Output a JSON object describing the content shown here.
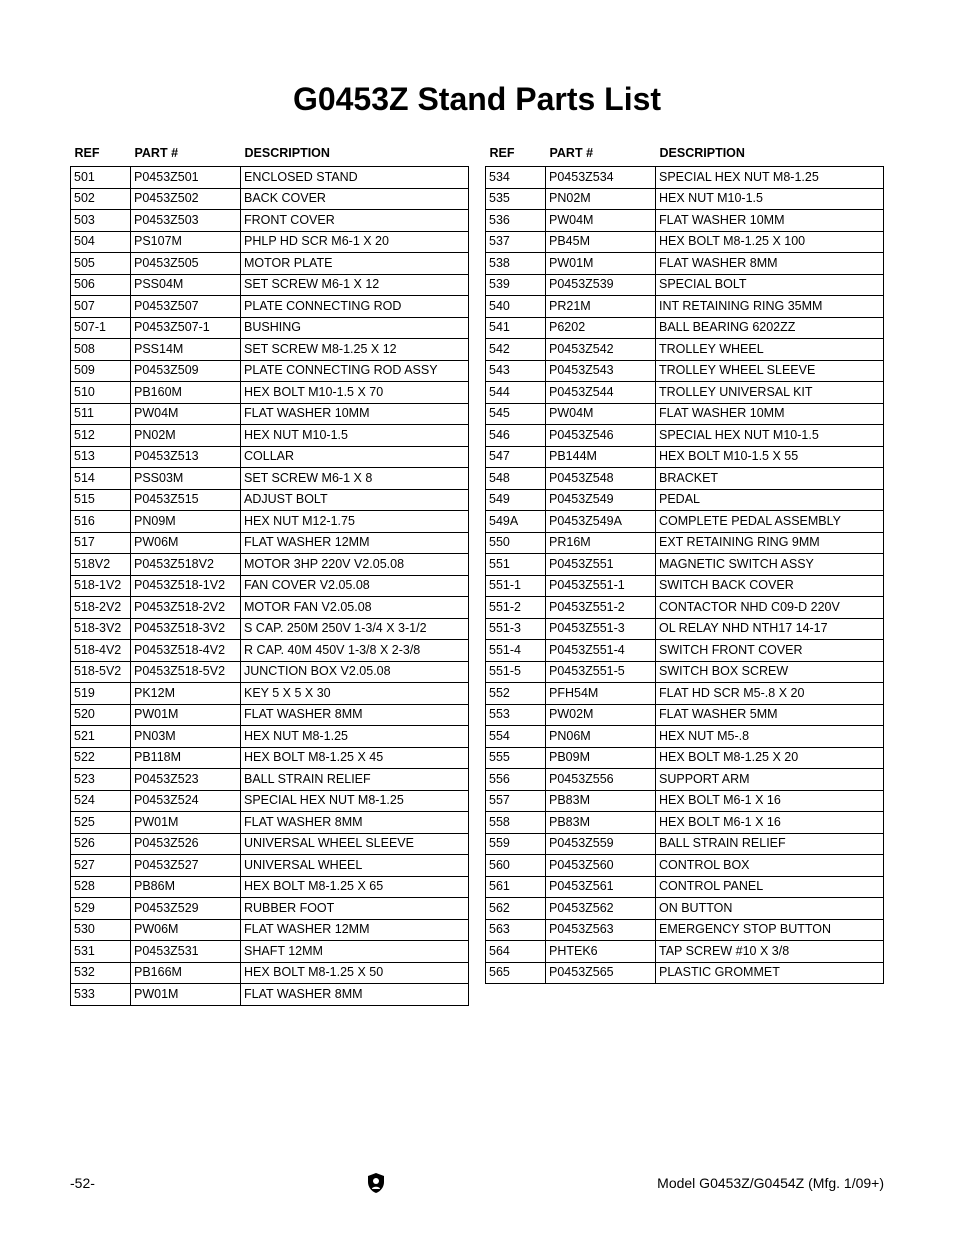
{
  "title": "G0453Z Stand Parts List",
  "headers": {
    "ref": "REF",
    "part": "PART #",
    "desc": "DESCRIPTION"
  },
  "left_rows": [
    {
      "ref": "501",
      "part": "P0453Z501",
      "desc": "ENCLOSED STAND"
    },
    {
      "ref": "502",
      "part": "P0453Z502",
      "desc": "BACK COVER"
    },
    {
      "ref": "503",
      "part": "P0453Z503",
      "desc": "FRONT COVER"
    },
    {
      "ref": "504",
      "part": "PS107M",
      "desc": "PHLP HD SCR M6-1 X 20"
    },
    {
      "ref": "505",
      "part": "P0453Z505",
      "desc": "MOTOR PLATE"
    },
    {
      "ref": "506",
      "part": "PSS04M",
      "desc": "SET SCREW M6-1 X 12"
    },
    {
      "ref": "507",
      "part": "P0453Z507",
      "desc": "PLATE CONNECTING ROD"
    },
    {
      "ref": "507-1",
      "part": "P0453Z507-1",
      "desc": "BUSHING"
    },
    {
      "ref": "508",
      "part": "PSS14M",
      "desc": "SET SCREW M8-1.25 X 12"
    },
    {
      "ref": "509",
      "part": "P0453Z509",
      "desc": "PLATE CONNECTING ROD ASSY"
    },
    {
      "ref": "510",
      "part": "PB160M",
      "desc": "HEX BOLT M10-1.5 X 70"
    },
    {
      "ref": "511",
      "part": "PW04M",
      "desc": "FLAT WASHER 10MM"
    },
    {
      "ref": "512",
      "part": "PN02M",
      "desc": "HEX NUT M10-1.5"
    },
    {
      "ref": "513",
      "part": "P0453Z513",
      "desc": "COLLAR"
    },
    {
      "ref": "514",
      "part": "PSS03M",
      "desc": "SET SCREW M6-1 X 8"
    },
    {
      "ref": "515",
      "part": "P0453Z515",
      "desc": "ADJUST BOLT"
    },
    {
      "ref": "516",
      "part": "PN09M",
      "desc": "HEX NUT M12-1.75"
    },
    {
      "ref": "517",
      "part": "PW06M",
      "desc": "FLAT WASHER 12MM"
    },
    {
      "ref": "518V2",
      "part": "P0453Z518V2",
      "desc": "MOTOR 3HP 220V V2.05.08"
    },
    {
      "ref": "518-1V2",
      "part": "P0453Z518-1V2",
      "desc": "FAN COVER V2.05.08"
    },
    {
      "ref": "518-2V2",
      "part": "P0453Z518-2V2",
      "desc": "MOTOR FAN V2.05.08"
    },
    {
      "ref": "518-3V2",
      "part": "P0453Z518-3V2",
      "desc": "S CAP. 250M 250V 1-3/4 X 3-1/2"
    },
    {
      "ref": "518-4V2",
      "part": "P0453Z518-4V2",
      "desc": "R CAP. 40M 450V 1-3/8 X 2-3/8"
    },
    {
      "ref": "518-5V2",
      "part": "P0453Z518-5V2",
      "desc": "JUNCTION BOX V2.05.08"
    },
    {
      "ref": "519",
      "part": "PK12M",
      "desc": "KEY 5 X 5 X 30"
    },
    {
      "ref": "520",
      "part": "PW01M",
      "desc": "FLAT WASHER 8MM"
    },
    {
      "ref": "521",
      "part": "PN03M",
      "desc": "HEX NUT M8-1.25"
    },
    {
      "ref": "522",
      "part": "PB118M",
      "desc": "HEX BOLT M8-1.25 X 45"
    },
    {
      "ref": "523",
      "part": "P0453Z523",
      "desc": "BALL STRAIN RELIEF"
    },
    {
      "ref": "524",
      "part": "P0453Z524",
      "desc": "SPECIAL HEX NUT M8-1.25"
    },
    {
      "ref": "525",
      "part": "PW01M",
      "desc": "FLAT WASHER 8MM"
    },
    {
      "ref": "526",
      "part": "P0453Z526",
      "desc": "UNIVERSAL WHEEL SLEEVE"
    },
    {
      "ref": "527",
      "part": "P0453Z527",
      "desc": "UNIVERSAL WHEEL"
    },
    {
      "ref": "528",
      "part": "PB86M",
      "desc": "HEX BOLT M8-1.25 X 65"
    },
    {
      "ref": "529",
      "part": "P0453Z529",
      "desc": "RUBBER FOOT"
    },
    {
      "ref": "530",
      "part": "PW06M",
      "desc": "FLAT WASHER 12MM"
    },
    {
      "ref": "531",
      "part": "P0453Z531",
      "desc": "SHAFT 12MM"
    },
    {
      "ref": "532",
      "part": "PB166M",
      "desc": "HEX BOLT M8-1.25 X 50"
    },
    {
      "ref": "533",
      "part": "PW01M",
      "desc": "FLAT WASHER 8MM"
    }
  ],
  "right_rows": [
    {
      "ref": "534",
      "part": "P0453Z534",
      "desc": "SPECIAL HEX NUT M8-1.25"
    },
    {
      "ref": "535",
      "part": "PN02M",
      "desc": "HEX NUT M10-1.5"
    },
    {
      "ref": "536",
      "part": "PW04M",
      "desc": "FLAT WASHER 10MM"
    },
    {
      "ref": "537",
      "part": "PB45M",
      "desc": "HEX BOLT M8-1.25 X 100"
    },
    {
      "ref": "538",
      "part": "PW01M",
      "desc": "FLAT WASHER 8MM"
    },
    {
      "ref": "539",
      "part": "P0453Z539",
      "desc": "SPECIAL BOLT"
    },
    {
      "ref": "540",
      "part": "PR21M",
      "desc": "INT RETAINING RING 35MM"
    },
    {
      "ref": "541",
      "part": "P6202",
      "desc": "BALL BEARING 6202ZZ"
    },
    {
      "ref": "542",
      "part": "P0453Z542",
      "desc": "TROLLEY WHEEL"
    },
    {
      "ref": "543",
      "part": "P0453Z543",
      "desc": "TROLLEY WHEEL SLEEVE"
    },
    {
      "ref": "544",
      "part": "P0453Z544",
      "desc": "TROLLEY UNIVERSAL KIT"
    },
    {
      "ref": "545",
      "part": "PW04M",
      "desc": "FLAT WASHER 10MM"
    },
    {
      "ref": "546",
      "part": "P0453Z546",
      "desc": "SPECIAL HEX NUT M10-1.5"
    },
    {
      "ref": "547",
      "part": "PB144M",
      "desc": "HEX BOLT M10-1.5 X 55"
    },
    {
      "ref": "548",
      "part": "P0453Z548",
      "desc": "BRACKET"
    },
    {
      "ref": "549",
      "part": "P0453Z549",
      "desc": "PEDAL"
    },
    {
      "ref": "549A",
      "part": "P0453Z549A",
      "desc": "COMPLETE PEDAL ASSEMBLY"
    },
    {
      "ref": "550",
      "part": "PR16M",
      "desc": "EXT RETAINING RING 9MM"
    },
    {
      "ref": "551",
      "part": "P0453Z551",
      "desc": "MAGNETIC SWITCH ASSY"
    },
    {
      "ref": "551-1",
      "part": "P0453Z551-1",
      "desc": "SWITCH BACK COVER"
    },
    {
      "ref": "551-2",
      "part": "P0453Z551-2",
      "desc": "CONTACTOR NHD C09-D 220V"
    },
    {
      "ref": "551-3",
      "part": "P0453Z551-3",
      "desc": "OL RELAY NHD NTH17 14-17"
    },
    {
      "ref": "551-4",
      "part": "P0453Z551-4",
      "desc": "SWITCH FRONT COVER"
    },
    {
      "ref": "551-5",
      "part": "P0453Z551-5",
      "desc": "SWITCH BOX SCREW"
    },
    {
      "ref": "552",
      "part": "PFH54M",
      "desc": "FLAT HD SCR M5-.8 X 20"
    },
    {
      "ref": "553",
      "part": "PW02M",
      "desc": "FLAT WASHER 5MM"
    },
    {
      "ref": "554",
      "part": "PN06M",
      "desc": "HEX NUT M5-.8"
    },
    {
      "ref": "555",
      "part": "PB09M",
      "desc": "HEX BOLT M8-1.25 X 20"
    },
    {
      "ref": "556",
      "part": "P0453Z556",
      "desc": "SUPPORT ARM"
    },
    {
      "ref": "557",
      "part": "PB83M",
      "desc": "HEX BOLT M6-1 X 16"
    },
    {
      "ref": "558",
      "part": "PB83M",
      "desc": "HEX BOLT M6-1 X 16"
    },
    {
      "ref": "559",
      "part": "P0453Z559",
      "desc": "BALL STRAIN RELIEF"
    },
    {
      "ref": "560",
      "part": "P0453Z560",
      "desc": "CONTROL BOX"
    },
    {
      "ref": "561",
      "part": "P0453Z561",
      "desc": "CONTROL PANEL"
    },
    {
      "ref": "562",
      "part": "P0453Z562",
      "desc": "ON BUTTON"
    },
    {
      "ref": "563",
      "part": "P0453Z563",
      "desc": "EMERGENCY STOP BUTTON"
    },
    {
      "ref": "564",
      "part": "PHTEK6",
      "desc": "TAP SCREW #10 X 3/8"
    },
    {
      "ref": "565",
      "part": "P0453Z565",
      "desc": "PLASTIC GROMMET"
    }
  ],
  "footer": {
    "left": "-52-",
    "right": "Model G0453Z/G0454Z (Mfg. 1/09+)"
  }
}
